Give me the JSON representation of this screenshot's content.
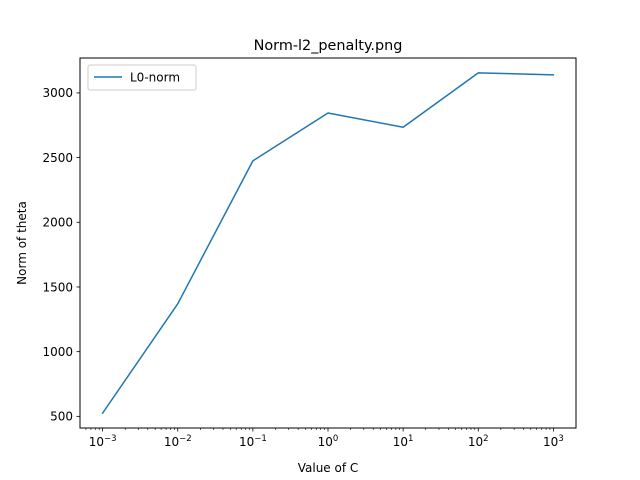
{
  "chart_data": {
    "type": "line",
    "title": "Norm-l2_penalty.png",
    "xlabel": "Value of C",
    "ylabel": "Norm of theta",
    "x_scale": "log",
    "xlim": [
      0.0005,
      2000
    ],
    "ylim": [
      410,
      3270
    ],
    "grid": false,
    "legend_position": "upper-left",
    "x_ticks": [
      {
        "value": 0.001,
        "mantissa": "10",
        "exponent": "−3"
      },
      {
        "value": 0.01,
        "mantissa": "10",
        "exponent": "−2"
      },
      {
        "value": 0.1,
        "mantissa": "10",
        "exponent": "−1"
      },
      {
        "value": 1,
        "mantissa": "10",
        "exponent": "0"
      },
      {
        "value": 10,
        "mantissa": "10",
        "exponent": "1"
      },
      {
        "value": 100,
        "mantissa": "10",
        "exponent": "2"
      },
      {
        "value": 1000,
        "mantissa": "10",
        "exponent": "3"
      }
    ],
    "y_ticks": [
      500,
      1000,
      1500,
      2000,
      2500,
      3000
    ],
    "series": [
      {
        "name": "L0-norm",
        "color": "#1f77b4",
        "x": [
          0.001,
          0.01,
          0.1,
          1,
          10,
          100,
          1000
        ],
        "y": [
          525,
          1370,
          2475,
          2845,
          2735,
          3155,
          3140
        ]
      }
    ]
  }
}
